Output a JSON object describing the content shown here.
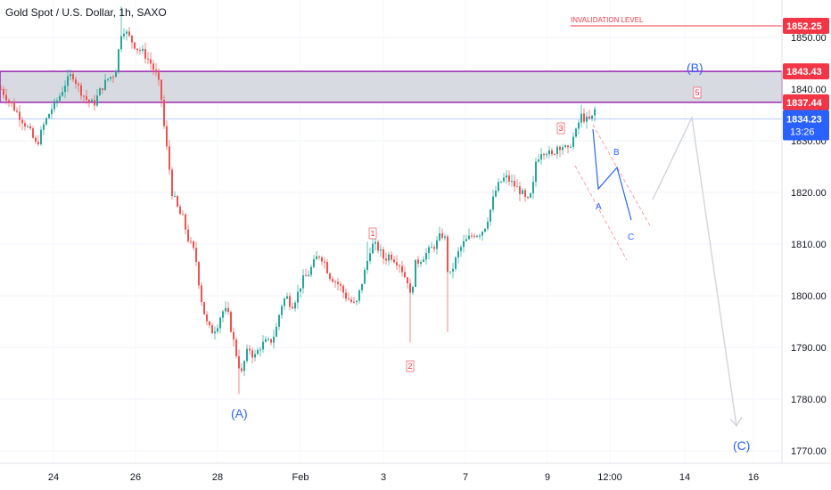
{
  "chart_data": {
    "type": "candlestick",
    "title": "Gold Spot / U.S. Dollar, 1h, SAXO",
    "ylim": [
      1768,
      1858
    ],
    "y_ticks": [
      "1850.00",
      "1840.00",
      "1830.00",
      "1820.00",
      "1810.00",
      "1800.00",
      "1790.00",
      "1780.00",
      "1770.00"
    ],
    "x_ticks": [
      "24",
      "26",
      "28",
      "Feb",
      "3",
      "7",
      "9",
      "12:00",
      "14",
      "16"
    ],
    "invalidation": {
      "label": "INVALIDATION LEVEL",
      "price": "1852.25",
      "value": 1852.25
    },
    "zone": {
      "top": "1843.43",
      "bottom": "1837.44",
      "top_value": 1843.43,
      "bottom_value": 1837.44
    },
    "current_price": {
      "price": "1834.23",
      "countdown": "13:26",
      "value": 1834.23
    },
    "colors": {
      "up": "#26a69a",
      "down": "#ef5350",
      "wave": "#2962ff",
      "zone_fill": "#d1d4dc",
      "zone_border": "#9c27b0",
      "red": "#f23645",
      "price_tag": "#2962ff",
      "projection": "#cfd2da"
    },
    "waves": {
      "A_major": "(A)",
      "B_major": "(B)",
      "C_major": "(C)"
    },
    "subwaves": {
      "a": "A",
      "b": "B",
      "c": "C"
    },
    "counts": {
      "c1": "1",
      "c2": "2",
      "c3": "3",
      "c5": "5"
    },
    "ohlc_keypoints": [
      [
        0,
        1840
      ],
      [
        8,
        1838
      ],
      [
        16,
        1836
      ],
      [
        24,
        1834
      ],
      [
        32,
        1832
      ],
      [
        40,
        1829
      ],
      [
        48,
        1833
      ],
      [
        56,
        1836
      ],
      [
        64,
        1838
      ],
      [
        72,
        1841
      ],
      [
        80,
        1843
      ],
      [
        88,
        1840
      ],
      [
        96,
        1838
      ],
      [
        104,
        1837
      ],
      [
        112,
        1840
      ],
      [
        120,
        1842
      ],
      [
        128,
        1843
      ],
      [
        136,
        1852
      ],
      [
        144,
        1850
      ],
      [
        152,
        1848
      ],
      [
        160,
        1847
      ],
      [
        168,
        1845
      ],
      [
        176,
        1842
      ],
      [
        180,
        1838
      ],
      [
        184,
        1831
      ],
      [
        188,
        1826
      ],
      [
        192,
        1820
      ],
      [
        196,
        1818
      ],
      [
        200,
        1816
      ],
      [
        204,
        1815
      ],
      [
        210,
        1811
      ],
      [
        218,
        1808
      ],
      [
        224,
        1800
      ],
      [
        230,
        1795
      ],
      [
        236,
        1793
      ],
      [
        242,
        1794
      ],
      [
        248,
        1797
      ],
      [
        254,
        1797
      ],
      [
        260,
        1792
      ],
      [
        266,
        1787
      ],
      [
        270,
        1785
      ],
      [
        274,
        1788
      ],
      [
        278,
        1790
      ],
      [
        284,
        1788
      ],
      [
        290,
        1790
      ],
      [
        296,
        1791
      ],
      [
        302,
        1791
      ],
      [
        308,
        1793
      ],
      [
        314,
        1798
      ],
      [
        320,
        1800
      ],
      [
        326,
        1798
      ],
      [
        332,
        1800
      ],
      [
        338,
        1803
      ],
      [
        344,
        1804
      ],
      [
        350,
        1806
      ],
      [
        356,
        1808
      ],
      [
        362,
        1807
      ],
      [
        368,
        1804
      ],
      [
        374,
        1803
      ],
      [
        380,
        1802
      ],
      [
        386,
        1800
      ],
      [
        392,
        1799
      ],
      [
        398,
        1798
      ],
      [
        404,
        1802
      ],
      [
        410,
        1806
      ],
      [
        414,
        1809
      ],
      [
        418,
        1810
      ],
      [
        424,
        1809
      ],
      [
        430,
        1807
      ],
      [
        436,
        1808
      ],
      [
        442,
        1807
      ],
      [
        448,
        1806
      ],
      [
        452,
        1804
      ],
      [
        456,
        1803
      ],
      [
        460,
        1799
      ],
      [
        464,
        1806
      ],
      [
        470,
        1807
      ],
      [
        476,
        1808
      ],
      [
        482,
        1809
      ],
      [
        488,
        1810
      ],
      [
        494,
        1812
      ],
      [
        498,
        1811
      ],
      [
        502,
        1803
      ],
      [
        506,
        1805
      ],
      [
        512,
        1808
      ],
      [
        518,
        1810
      ],
      [
        524,
        1811
      ],
      [
        530,
        1812
      ],
      [
        536,
        1812
      ],
      [
        542,
        1813
      ],
      [
        548,
        1816
      ],
      [
        554,
        1820
      ],
      [
        560,
        1822
      ],
      [
        566,
        1823
      ],
      [
        572,
        1822
      ],
      [
        578,
        1821
      ],
      [
        584,
        1820
      ],
      [
        590,
        1818
      ],
      [
        596,
        1820
      ],
      [
        600,
        1826
      ],
      [
        606,
        1828
      ],
      [
        612,
        1828
      ],
      [
        618,
        1827
      ],
      [
        624,
        1829
      ],
      [
        630,
        1829
      ],
      [
        636,
        1828
      ],
      [
        640,
        1830
      ],
      [
        646,
        1832
      ],
      [
        650,
        1835
      ],
      [
        656,
        1834
      ],
      [
        662,
        1834
      ],
      [
        666,
        1836
      ]
    ]
  }
}
